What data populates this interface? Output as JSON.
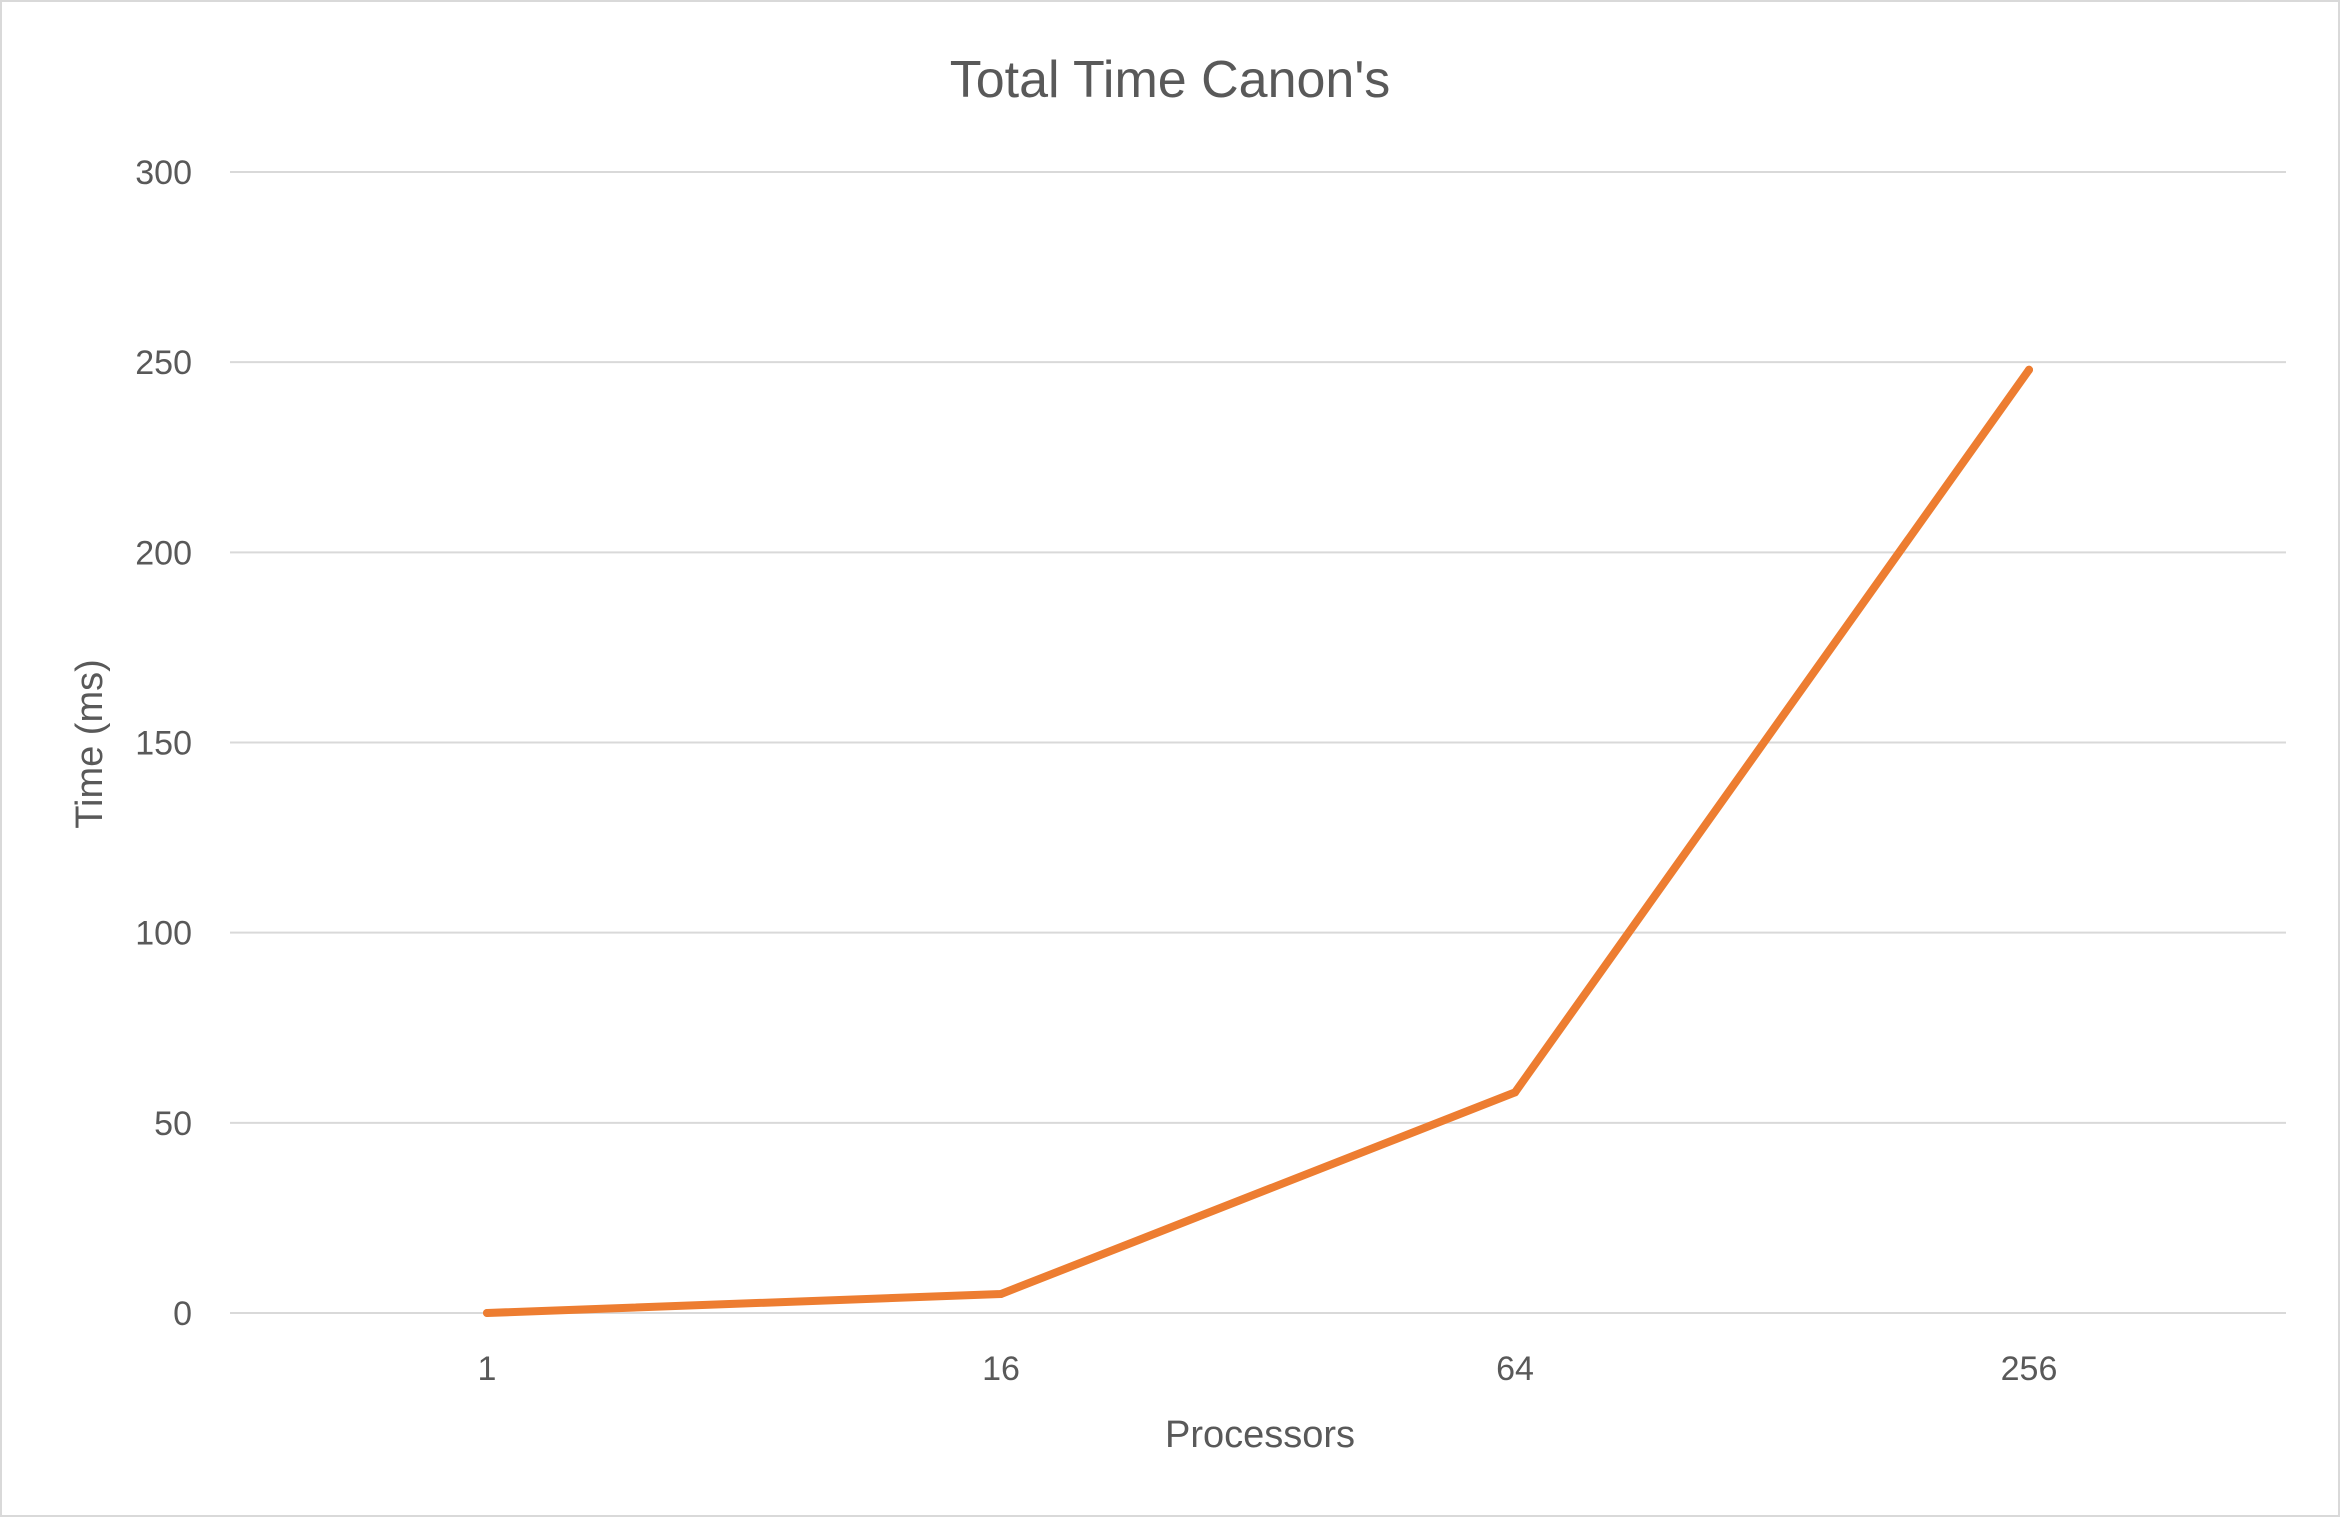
{
  "chart_data": {
    "type": "line",
    "title": "Total Time Canon's",
    "xlabel": "Processors",
    "ylabel": "Time (ms)",
    "categories": [
      "1",
      "16",
      "64",
      "256"
    ],
    "series": [
      {
        "values": [
          0,
          5,
          58,
          248
        ],
        "color": "#ED7D31"
      }
    ],
    "ylim": [
      0,
      300
    ],
    "yticks": [
      "0",
      "50",
      "100",
      "150",
      "200",
      "250",
      "300"
    ],
    "grid": true,
    "legend": "none"
  }
}
